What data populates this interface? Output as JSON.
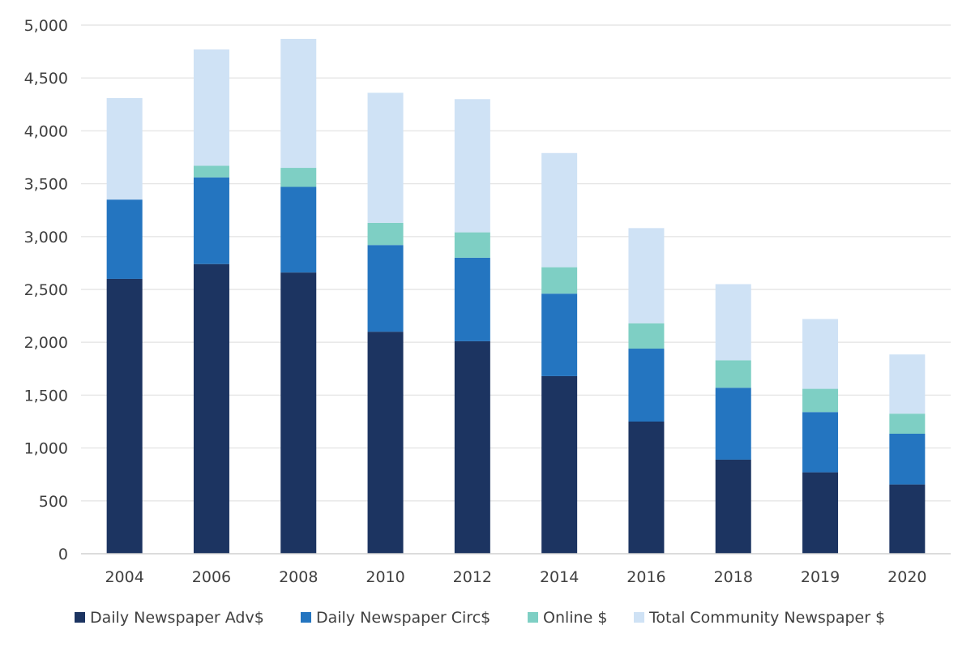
{
  "chart_data": {
    "type": "bar",
    "stacked": true,
    "title": "",
    "xlabel": "",
    "ylabel": "",
    "categories": [
      "2004",
      "2006",
      "2008",
      "2010",
      "2012",
      "2014",
      "2016",
      "2018",
      "2019",
      "2020"
    ],
    "ylim": [
      0,
      5000
    ],
    "yticks": [
      0,
      500,
      1000,
      1500,
      2000,
      2500,
      3000,
      3500,
      4000,
      4500,
      5000
    ],
    "ytick_labels": [
      "0",
      "500",
      "1,000",
      "1,500",
      "2,000",
      "2,500",
      "3,000",
      "3,500",
      "4,000",
      "4,500",
      "5,000"
    ],
    "grid": true,
    "legend_position": "bottom",
    "series": [
      {
        "name": "Daily Newspaper Adv$",
        "color": "#1c3461",
        "values": [
          2600,
          2740,
          2660,
          2100,
          2010,
          1680,
          1250,
          890,
          770,
          655
        ]
      },
      {
        "name": "Daily Newspaper Circ$",
        "color": "#2475c0",
        "values": [
          750,
          820,
          810,
          820,
          790,
          780,
          690,
          680,
          570,
          480
        ]
      },
      {
        "name": "Online $",
        "color": "#7ecfc4",
        "values": [
          0,
          110,
          180,
          210,
          240,
          250,
          240,
          260,
          220,
          190
        ]
      },
      {
        "name": "Total Community Newspaper $",
        "color": "#cfe2f5",
        "values": [
          960,
          1100,
          1220,
          1230,
          1260,
          1080,
          900,
          720,
          660,
          560
        ]
      }
    ]
  }
}
